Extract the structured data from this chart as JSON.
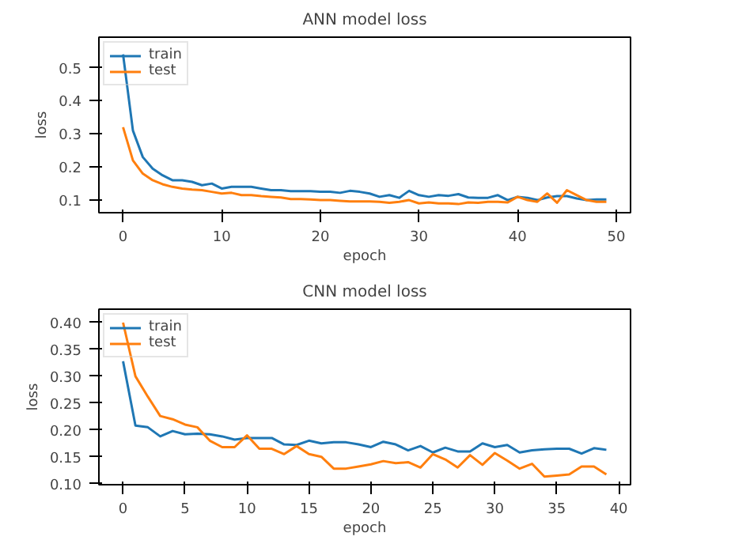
{
  "chart_data": [
    {
      "type": "line",
      "title": "ANN model loss",
      "xlabel": "epoch",
      "ylabel": "loss",
      "legend": "top left",
      "grid": false,
      "x": [
        0,
        1,
        2,
        3,
        4,
        5,
        6,
        7,
        8,
        9,
        10,
        11,
        12,
        13,
        14,
        15,
        16,
        17,
        18,
        19,
        20,
        21,
        22,
        23,
        24,
        25,
        26,
        27,
        28,
        29,
        30,
        31,
        32,
        33,
        34,
        35,
        36,
        37,
        38,
        39,
        40,
        41,
        42,
        43,
        44,
        45,
        46,
        47,
        48,
        49
      ],
      "xlim": [
        -2.45,
        51.45
      ],
      "xticks": [
        0,
        10,
        20,
        30,
        40,
        50
      ],
      "ylim": [
        0.062,
        0.592
      ],
      "yticks": [
        0.1,
        0.2,
        0.3,
        0.4,
        0.5
      ],
      "series": [
        {
          "name": "train",
          "color": "#1f77b4",
          "values": [
            0.54,
            0.31,
            0.23,
            0.195,
            0.175,
            0.16,
            0.16,
            0.155,
            0.145,
            0.15,
            0.135,
            0.14,
            0.14,
            0.14,
            0.135,
            0.13,
            0.13,
            0.127,
            0.127,
            0.127,
            0.125,
            0.125,
            0.122,
            0.128,
            0.125,
            0.12,
            0.11,
            0.115,
            0.107,
            0.128,
            0.115,
            0.11,
            0.115,
            0.113,
            0.118,
            0.108,
            0.107,
            0.107,
            0.115,
            0.1,
            0.11,
            0.107,
            0.1,
            0.108,
            0.112,
            0.112,
            0.105,
            0.1,
            0.102,
            0.102
          ]
        },
        {
          "name": "test",
          "color": "#ff7f0e",
          "values": [
            0.32,
            0.22,
            0.18,
            0.16,
            0.148,
            0.14,
            0.135,
            0.132,
            0.13,
            0.125,
            0.12,
            0.122,
            0.115,
            0.115,
            0.112,
            0.11,
            0.108,
            0.103,
            0.103,
            0.102,
            0.1,
            0.1,
            0.098,
            0.096,
            0.096,
            0.096,
            0.095,
            0.092,
            0.095,
            0.1,
            0.09,
            0.093,
            0.09,
            0.09,
            0.088,
            0.093,
            0.092,
            0.095,
            0.095,
            0.093,
            0.11,
            0.1,
            0.095,
            0.12,
            0.092,
            0.13,
            0.115,
            0.1,
            0.095,
            0.095
          ]
        }
      ]
    },
    {
      "type": "line",
      "title": "CNN model loss",
      "xlabel": "epoch",
      "ylabel": "loss",
      "legend": "top left",
      "grid": false,
      "x": [
        0,
        1,
        2,
        3,
        4,
        5,
        6,
        7,
        8,
        9,
        10,
        11,
        12,
        13,
        14,
        15,
        16,
        17,
        18,
        19,
        20,
        21,
        22,
        23,
        24,
        25,
        26,
        27,
        28,
        29,
        30,
        31,
        32,
        33,
        34,
        35,
        36,
        37,
        38,
        39
      ],
      "xlim": [
        -1.95,
        40.95
      ],
      "xticks": [
        0,
        5,
        10,
        15,
        20,
        25,
        30,
        35,
        40
      ],
      "ylim": [
        0.098,
        0.425
      ],
      "yticks": [
        {
          "value": 0.1,
          "label": "0.10"
        },
        {
          "value": 0.15,
          "label": "0.15"
        },
        {
          "value": 0.2,
          "label": "0.20"
        },
        {
          "value": 0.25,
          "label": "0.25"
        },
        {
          "value": 0.3,
          "label": "0.30"
        },
        {
          "value": 0.35,
          "label": "0.35"
        },
        {
          "value": 0.4,
          "label": "0.40"
        }
      ],
      "series": [
        {
          "name": "train",
          "color": "#1f77b4",
          "values": [
            0.328,
            0.208,
            0.205,
            0.188,
            0.198,
            0.192,
            0.193,
            0.192,
            0.188,
            0.182,
            0.185,
            0.185,
            0.185,
            0.173,
            0.172,
            0.18,
            0.175,
            0.177,
            0.177,
            0.173,
            0.168,
            0.178,
            0.173,
            0.162,
            0.17,
            0.158,
            0.167,
            0.16,
            0.16,
            0.175,
            0.168,
            0.172,
            0.158,
            0.162,
            0.164,
            0.165,
            0.165,
            0.156,
            0.166,
            0.163
          ]
        },
        {
          "name": "test",
          "color": "#ff7f0e",
          "values": [
            0.4,
            0.3,
            0.262,
            0.226,
            0.22,
            0.21,
            0.205,
            0.18,
            0.168,
            0.168,
            0.19,
            0.165,
            0.165,
            0.155,
            0.17,
            0.155,
            0.15,
            0.128,
            0.128,
            0.132,
            0.136,
            0.142,
            0.138,
            0.14,
            0.13,
            0.155,
            0.145,
            0.13,
            0.153,
            0.135,
            0.157,
            0.143,
            0.128,
            0.137,
            0.113,
            0.115,
            0.117,
            0.132,
            0.132,
            0.117
          ]
        }
      ]
    }
  ]
}
